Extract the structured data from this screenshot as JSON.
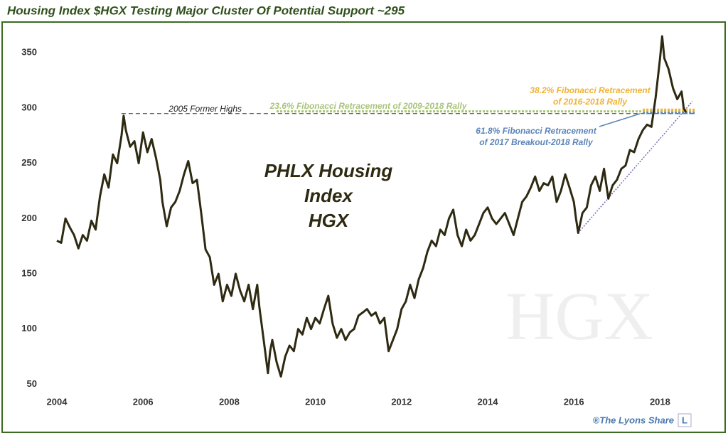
{
  "chart_data": {
    "type": "line",
    "title": "Housing Index $HGX Testing Major Cluster Of Potential Support ~295",
    "center_label": [
      "PHLX Housing",
      "Index",
      "HGX"
    ],
    "watermark": "HGX",
    "credit": "®The Lyons Share",
    "credit_logo": "L",
    "xlim": [
      2004,
      2019
    ],
    "xticks": [
      2004,
      2006,
      2008,
      2010,
      2012,
      2014,
      2016,
      2018
    ],
    "ylim": [
      38,
      374
    ],
    "yticks": [
      50,
      100,
      150,
      200,
      250,
      300,
      350
    ],
    "series": [
      {
        "name": "HGX",
        "color": "#2e2a12",
        "x": [
          2004.0,
          2004.1,
          2004.2,
          2004.3,
          2004.4,
          2004.5,
          2004.6,
          2004.7,
          2004.8,
          2004.9,
          2005.0,
          2005.1,
          2005.2,
          2005.3,
          2005.4,
          2005.5,
          2005.55,
          2005.6,
          2005.7,
          2005.8,
          2005.9,
          2006.0,
          2006.1,
          2006.2,
          2006.3,
          2006.4,
          2006.45,
          2006.55,
          2006.65,
          2006.75,
          2006.85,
          2006.95,
          2007.05,
          2007.15,
          2007.25,
          2007.35,
          2007.45,
          2007.55,
          2007.65,
          2007.75,
          2007.85,
          2007.95,
          2008.05,
          2008.15,
          2008.25,
          2008.35,
          2008.45,
          2008.55,
          2008.65,
          2008.7,
          2008.8,
          2008.9,
          2008.95,
          2009.0,
          2009.1,
          2009.2,
          2009.3,
          2009.4,
          2009.5,
          2009.6,
          2009.7,
          2009.8,
          2009.9,
          2010.0,
          2010.1,
          2010.2,
          2010.3,
          2010.4,
          2010.5,
          2010.6,
          2010.7,
          2010.8,
          2010.9,
          2011.0,
          2011.1,
          2011.2,
          2011.3,
          2011.4,
          2011.5,
          2011.6,
          2011.7,
          2011.8,
          2011.9,
          2012.0,
          2012.1,
          2012.2,
          2012.3,
          2012.4,
          2012.5,
          2012.6,
          2012.7,
          2012.8,
          2012.9,
          2013.0,
          2013.1,
          2013.2,
          2013.3,
          2013.4,
          2013.5,
          2013.6,
          2013.7,
          2013.8,
          2013.9,
          2014.0,
          2014.1,
          2014.2,
          2014.3,
          2014.4,
          2014.5,
          2014.6,
          2014.7,
          2014.8,
          2014.9,
          2015.0,
          2015.1,
          2015.2,
          2015.3,
          2015.4,
          2015.5,
          2015.6,
          2015.7,
          2015.8,
          2015.9,
          2016.0,
          2016.05,
          2016.1,
          2016.2,
          2016.3,
          2016.4,
          2016.5,
          2016.6,
          2016.7,
          2016.8,
          2016.9,
          2017.0,
          2017.1,
          2017.2,
          2017.3,
          2017.4,
          2017.5,
          2017.6,
          2017.7,
          2017.8,
          2017.9,
          2018.0,
          2018.05,
          2018.1,
          2018.2,
          2018.3,
          2018.4,
          2018.5,
          2018.55,
          2018.6
        ],
        "values": [
          180,
          178,
          200,
          192,
          185,
          173,
          185,
          180,
          198,
          190,
          220,
          240,
          228,
          258,
          250,
          275,
          293,
          280,
          265,
          270,
          250,
          278,
          260,
          272,
          255,
          235,
          215,
          193,
          210,
          215,
          225,
          240,
          252,
          232,
          235,
          205,
          172,
          165,
          140,
          150,
          125,
          140,
          130,
          150,
          135,
          125,
          140,
          118,
          140,
          120,
          90,
          60,
          80,
          90,
          70,
          57,
          75,
          85,
          80,
          100,
          95,
          110,
          100,
          110,
          105,
          118,
          130,
          105,
          92,
          100,
          90,
          97,
          100,
          112,
          115,
          118,
          112,
          115,
          105,
          110,
          80,
          90,
          100,
          118,
          125,
          140,
          128,
          145,
          155,
          170,
          180,
          175,
          190,
          185,
          200,
          208,
          185,
          175,
          190,
          180,
          185,
          195,
          205,
          210,
          200,
          195,
          200,
          205,
          195,
          185,
          200,
          215,
          220,
          228,
          238,
          225,
          232,
          230,
          238,
          215,
          225,
          240,
          228,
          215,
          200,
          187,
          205,
          210,
          230,
          238,
          225,
          245,
          218,
          230,
          235,
          245,
          248,
          262,
          260,
          272,
          280,
          285,
          283,
          310,
          345,
          365,
          345,
          335,
          318,
          308,
          315,
          300,
          296
        ]
      }
    ],
    "levels": [
      {
        "label": "2005 Former Highs",
        "value": 295,
        "from": 2005.5,
        "color": "#333333"
      },
      {
        "label": "23.6% Fibonacci Retracement of 2009-2018 Rally",
        "value": 297,
        "from": 2009.1,
        "color": "#a8c47a"
      },
      {
        "label": [
          "38.2% Fibonacci Retracement",
          "of 2016-2018 Rally"
        ],
        "value": 298.5,
        "from": 2017.6,
        "color": "#f2b233"
      },
      {
        "label": [
          "61.8% Fibonacci Retracement",
          "of 2017 Breakout-2018 Rally"
        ],
        "value": 295.5,
        "from": 2017.6,
        "color": "#5b84b8"
      }
    ],
    "trendline": {
      "x": [
        2016.1,
        2018.75
      ],
      "values": [
        187,
        306
      ],
      "color": "#7a6fb0"
    }
  }
}
